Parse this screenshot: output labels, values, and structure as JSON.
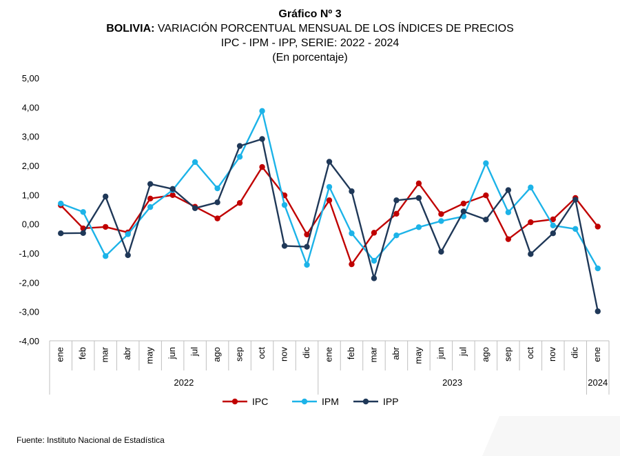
{
  "header": {
    "title": "Gráfico Nº 3",
    "subtitle_bold": "BOLIVIA:",
    "subtitle_rest": " VARIACIÓN PORCENTUAL MENSUAL DE LOS ÍNDICES DE PRECIOS",
    "series_line": "IPC - IPM - IPP, SERIE: 2022 - 2024",
    "unit_line": "(En porcentaje)"
  },
  "footer": {
    "source": "Fuente: Instituto Nacional de Estadística"
  },
  "colors": {
    "IPC": "#C00000",
    "IPM": "#1CB3E8",
    "IPP": "#1F3858",
    "grid": "#D9D9D9"
  },
  "chart_data": {
    "type": "line",
    "categories": [
      "ene",
      "feb",
      "mar",
      "abr",
      "may",
      "jun",
      "jul",
      "ago",
      "sep",
      "oct",
      "nov",
      "dic",
      "ene",
      "feb",
      "mar",
      "abr",
      "may",
      "jun",
      "jul",
      "ago",
      "sep",
      "oct",
      "nov",
      "dic",
      "ene"
    ],
    "year_groups": [
      {
        "label": "2022",
        "start": 0,
        "end": 11
      },
      {
        "label": "2023",
        "start": 12,
        "end": 23
      },
      {
        "label": "2024",
        "start": 24,
        "end": 24
      }
    ],
    "y_ticks": [
      "5,00",
      "4,00",
      "3,00",
      "2,00",
      "1,00",
      "0,00",
      "-1,00",
      "-2,00",
      "-3,00",
      "-4,00"
    ],
    "ylim": [
      -4,
      5
    ],
    "grid": false,
    "legend_position": "bottom",
    "series": [
      {
        "name": "IPC",
        "values": [
          0.64,
          -0.15,
          -0.1,
          -0.29,
          0.87,
          0.99,
          0.59,
          0.19,
          0.72,
          1.95,
          0.98,
          -0.36,
          0.81,
          -1.38,
          -0.3,
          0.35,
          1.39,
          0.34,
          0.7,
          0.98,
          -0.52,
          0.06,
          0.16,
          0.89,
          -0.09
        ]
      },
      {
        "name": "IPM",
        "values": [
          0.7,
          0.41,
          -1.1,
          -0.35,
          0.58,
          1.16,
          2.12,
          1.22,
          2.3,
          3.87,
          0.65,
          -1.4,
          1.27,
          -0.32,
          -1.26,
          -0.39,
          -0.11,
          0.1,
          0.26,
          2.08,
          0.4,
          1.25,
          -0.05,
          -0.17,
          -1.52
        ]
      },
      {
        "name": "IPP",
        "values": [
          -0.32,
          -0.31,
          0.94,
          -1.07,
          1.37,
          1.2,
          0.54,
          0.74,
          2.67,
          2.91,
          -0.75,
          -0.78,
          2.13,
          1.12,
          -1.86,
          0.81,
          0.89,
          -0.95,
          0.43,
          0.15,
          1.16,
          -1.03,
          -0.32,
          0.83,
          -2.99
        ]
      }
    ]
  }
}
